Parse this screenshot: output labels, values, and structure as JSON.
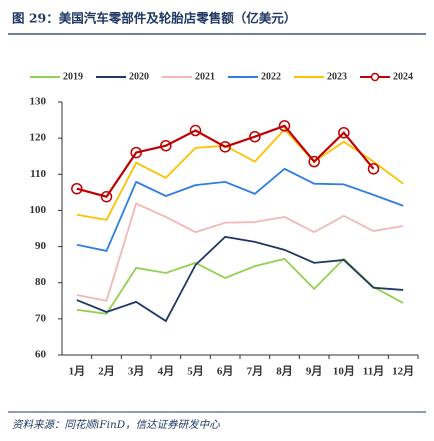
{
  "chart_data": {
    "type": "line",
    "title": "图 29：美国汽车零部件及轮胎店零售额（亿美元）",
    "source": "资料来源：同花顺iFinD，信达证券研发中心",
    "categories": [
      "1月",
      "2月",
      "3月",
      "4月",
      "5月",
      "6月",
      "7月",
      "8月",
      "9月",
      "10月",
      "11月",
      "12月"
    ],
    "ylim": [
      60,
      130
    ],
    "yticks": [
      60,
      70,
      80,
      90,
      100,
      110,
      120,
      130
    ],
    "legend": "top",
    "series": [
      {
        "name": "2019",
        "color": "#92d050",
        "values": [
          72.5,
          71.4,
          84.1,
          82.7,
          85.5,
          81.3,
          84.6,
          86.6,
          78.3,
          86.6,
          78.8,
          74.4
        ]
      },
      {
        "name": "2020",
        "color": "#1f3864",
        "values": [
          75.2,
          71.9,
          74.7,
          69.4,
          84.9,
          92.7,
          91.3,
          89.1,
          85.5,
          86.3,
          78.6,
          78.0
        ]
      },
      {
        "name": "2021",
        "color": "#f4b6b6",
        "values": [
          76.6,
          75.0,
          101.9,
          98.2,
          94.0,
          96.6,
          96.8,
          98.2,
          94.0,
          98.5,
          94.3,
          95.7
        ]
      },
      {
        "name": "2022",
        "color": "#2f7fe0",
        "values": [
          90.5,
          88.8,
          107.9,
          104.0,
          107.0,
          107.9,
          104.6,
          111.5,
          107.4,
          107.2,
          104.3,
          101.3
        ]
      },
      {
        "name": "2023",
        "color": "#ffc000",
        "values": [
          98.8,
          97.4,
          113.2,
          109.0,
          117.3,
          117.9,
          113.5,
          122.4,
          113.5,
          119.0,
          113.5,
          107.4
        ]
      },
      {
        "name": "2024",
        "color": "#c00000",
        "marker": "circle",
        "values": [
          106.0,
          103.8,
          116.0,
          117.9,
          122.1,
          117.6,
          120.4,
          123.4,
          113.5,
          121.5,
          111.5,
          null
        ]
      }
    ]
  }
}
